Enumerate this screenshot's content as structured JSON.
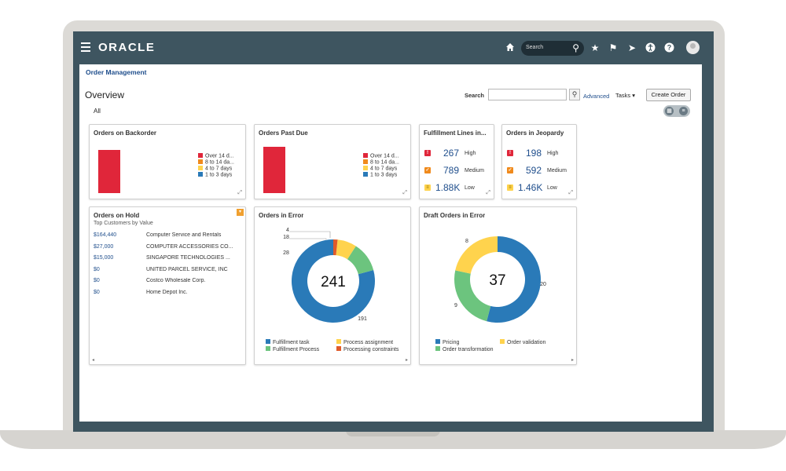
{
  "app": {
    "brand": "ORACLE",
    "search_placeholder": "Search",
    "breadcrumb": "Order Management",
    "page_title": "Overview",
    "search_label": "Search",
    "advanced_label": "Advanced",
    "tasks_label": "Tasks ▾",
    "create_order_label": "Create Order",
    "tab_all": "All"
  },
  "colors": {
    "red": "#e0263a",
    "orange": "#f08a1c",
    "yellow": "#ffd34d",
    "blue": "#2a7ab8",
    "green": "#6cc47e",
    "dark_orange": "#e05a2a"
  },
  "backorder": {
    "title": "Orders on Backorder",
    "legend": [
      "Over 14 d...",
      "8 to 14 da...",
      "4 to 7 days",
      "1 to 3 days"
    ]
  },
  "past_due": {
    "title": "Orders Past Due",
    "legend": [
      "Over 14 d...",
      "8 to 14 da...",
      "4 to 7 days",
      "1 to 3 days"
    ]
  },
  "fulfillment": {
    "title": "Fulfillment Lines in...",
    "rows": [
      {
        "value": "267",
        "label": "High"
      },
      {
        "value": "789",
        "label": "Medium"
      },
      {
        "value": "1.88K",
        "label": "Low"
      }
    ]
  },
  "jeopardy": {
    "title": "Orders in Jeopardy",
    "rows": [
      {
        "value": "198",
        "label": "High"
      },
      {
        "value": "592",
        "label": "Medium"
      },
      {
        "value": "1.46K",
        "label": "Low"
      }
    ]
  },
  "hold": {
    "title": "Orders on Hold",
    "subtitle": "Top Customers by Value",
    "rows": [
      {
        "amount": "$164,440",
        "name": "Computer Service and Rentals"
      },
      {
        "amount": "$27,000",
        "name": "COMPUTER ACCESSORIES CO..."
      },
      {
        "amount": "$15,000",
        "name": "SINGAPORE TECHNOLOGIES ..."
      },
      {
        "amount": "$0",
        "name": "UNITED PARCEL SERVICE, INC"
      },
      {
        "amount": "$0",
        "name": "Costco Wholesale Corp."
      },
      {
        "amount": "$0",
        "name": "Home Depot Inc."
      }
    ]
  },
  "chart_data": [
    {
      "type": "pie",
      "title": "Orders in Error",
      "total": "241",
      "slices": [
        {
          "name": "Fulfillment task",
          "value": 191
        },
        {
          "name": "Fulfillment Process",
          "value": 28
        },
        {
          "name": "Process assignment",
          "value": 18
        },
        {
          "name": "Processing constraints",
          "value": 4
        }
      ]
    },
    {
      "type": "pie",
      "title": "Draft Orders in Error",
      "total": "37",
      "slices": [
        {
          "name": "Pricing",
          "value": 20
        },
        {
          "name": "Order transformation",
          "value": 9
        },
        {
          "name": "Order validation",
          "value": 8
        }
      ]
    }
  ]
}
